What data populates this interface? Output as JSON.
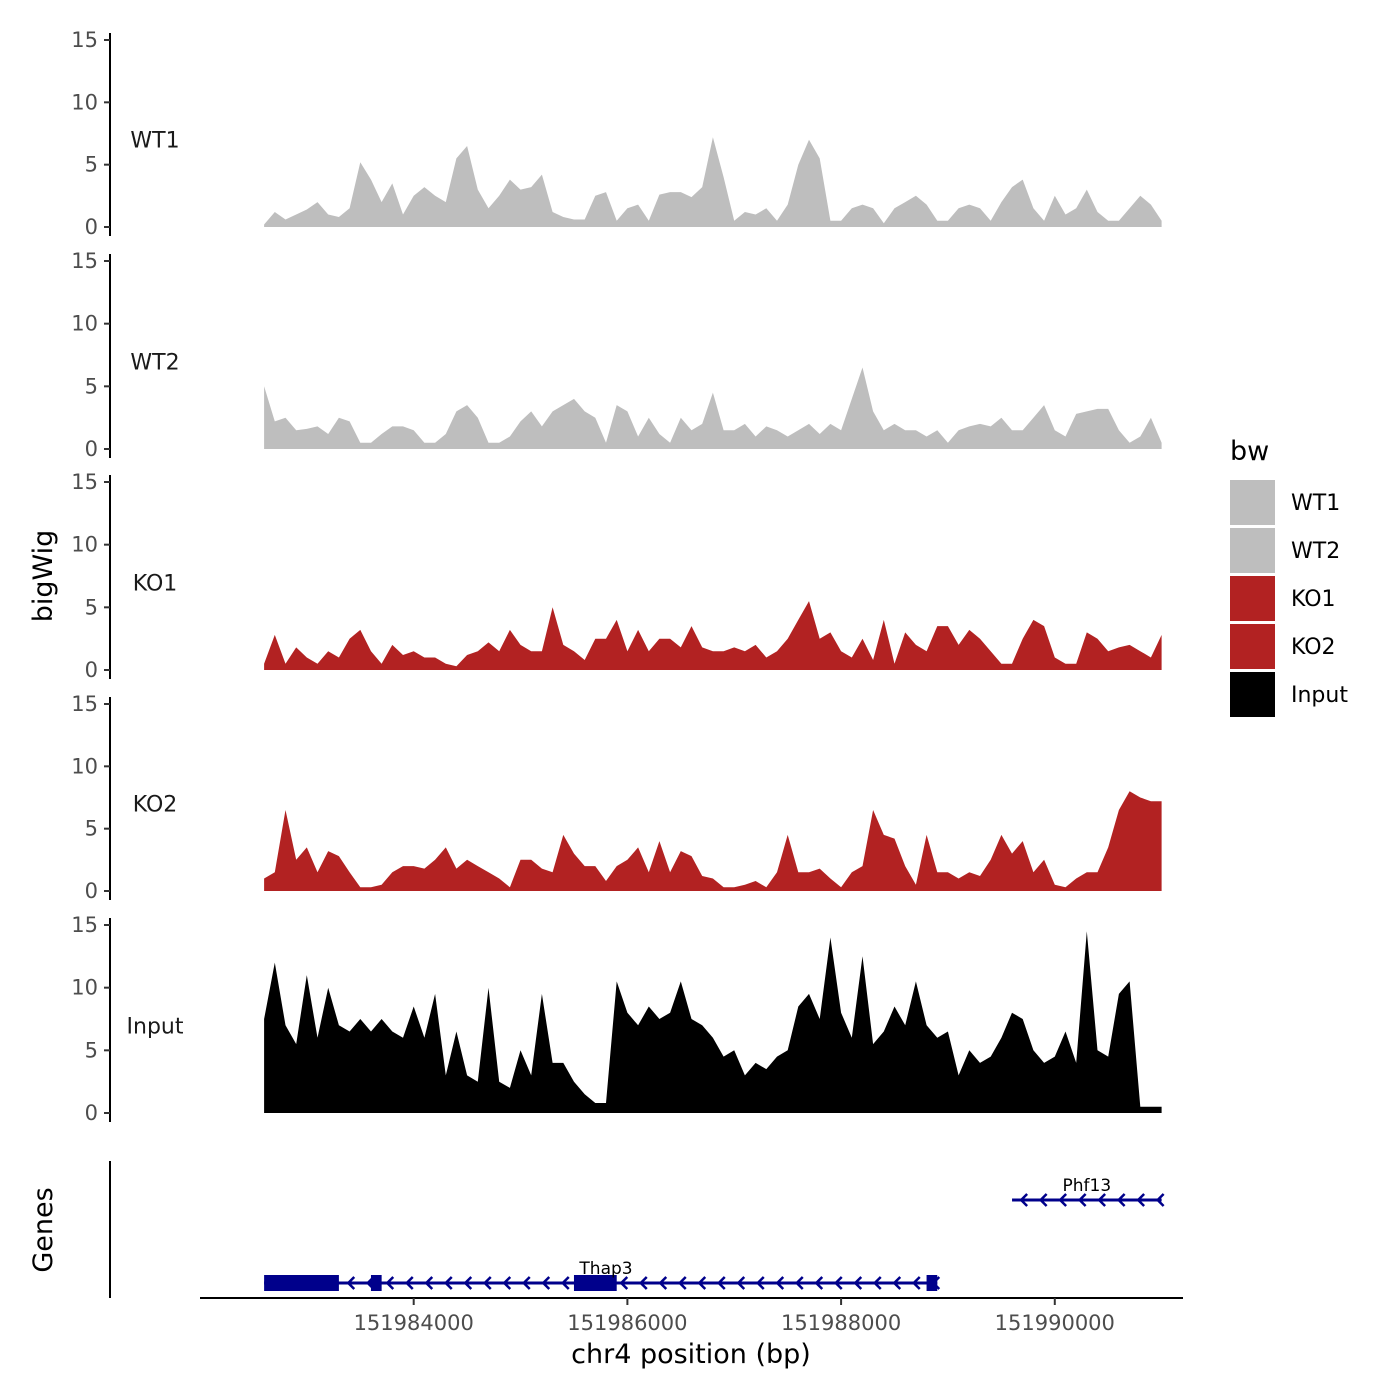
{
  "chart_data": {
    "type": "area",
    "title": "",
    "xlabel": "chr4 position (bp)",
    "ylabel": "bigWig",
    "genes_label": "Genes",
    "xlim": [
      151982000,
      151991200
    ],
    "x_ticks": [
      151984000,
      151986000,
      151988000,
      151990000
    ],
    "x_tick_labels": [
      "151984000",
      "151986000",
      "151988000",
      "151990000"
    ],
    "ylim": [
      0,
      15
    ],
    "y_ticks": [
      0,
      5,
      10,
      15
    ],
    "y_tick_labels": [
      "0",
      "5",
      "10",
      "15"
    ],
    "legend": {
      "title": "bw",
      "entries": [
        {
          "label": "WT1",
          "color": "#bebebe"
        },
        {
          "label": "WT2",
          "color": "#bebebe"
        },
        {
          "label": "KO1",
          "color": "#b22222"
        },
        {
          "label": "KO2",
          "color": "#b22222"
        },
        {
          "label": "Input",
          "color": "#000000"
        }
      ]
    },
    "series": [
      {
        "name": "WT1",
        "color": "#bebebe",
        "x": [
          151982600,
          151982700,
          151982800,
          151982900,
          151983000,
          151983100,
          151983200,
          151983300,
          151983400,
          151983500,
          151983600,
          151983700,
          151983800,
          151983900,
          151984000,
          151984100,
          151984200,
          151984300,
          151984400,
          151984500,
          151984600,
          151984700,
          151984800,
          151984900,
          151985000,
          151985100,
          151985200,
          151985300,
          151985400,
          151985500,
          151985600,
          151985700,
          151985800,
          151985900,
          151986000,
          151986100,
          151986200,
          151986300,
          151986400,
          151986500,
          151986600,
          151986700,
          151986800,
          151986900,
          151987000,
          151987100,
          151987200,
          151987300,
          151987400,
          151987500,
          151987600,
          151987700,
          151987800,
          151987900,
          151988000,
          151988100,
          151988200,
          151988300,
          151988400,
          151988500,
          151988600,
          151988700,
          151988800,
          151988900,
          151989000,
          151989100,
          151989200,
          151989300,
          151989400,
          151989500,
          151989600,
          151989700,
          151989800,
          151989900,
          151990000,
          151990100,
          151990200,
          151990300,
          151990400,
          151990500,
          151990600,
          151990700,
          151990800,
          151990900,
          151991000
        ],
        "values": [
          0.2,
          1.2,
          0.6,
          1.0,
          1.4,
          2.0,
          1.0,
          0.8,
          1.5,
          5.2,
          3.8,
          2.0,
          3.5,
          1.0,
          2.5,
          3.2,
          2.5,
          2.0,
          5.5,
          6.5,
          3.0,
          1.5,
          2.5,
          3.8,
          3.0,
          3.2,
          4.2,
          1.2,
          0.8,
          0.6,
          0.6,
          2.5,
          2.8,
          0.5,
          1.5,
          1.8,
          0.5,
          2.6,
          2.8,
          2.8,
          2.4,
          3.2,
          7.2,
          4.0,
          0.5,
          1.2,
          1.0,
          1.5,
          0.5,
          1.8,
          5.0,
          7.0,
          5.5,
          0.5,
          0.5,
          1.5,
          1.8,
          1.5,
          0.3,
          1.5,
          2.0,
          2.5,
          1.8,
          0.5,
          0.5,
          1.5,
          1.8,
          1.5,
          0.5,
          2.0,
          3.2,
          3.8,
          1.5,
          0.5,
          2.5,
          1.0,
          1.5,
          3.0,
          1.2,
          0.5,
          0.5,
          1.5,
          2.5,
          1.8,
          0.5
        ]
      },
      {
        "name": "WT2",
        "color": "#bebebe",
        "x": [
          151982600,
          151982700,
          151982800,
          151982900,
          151983000,
          151983100,
          151983200,
          151983300,
          151983400,
          151983500,
          151983600,
          151983700,
          151983800,
          151983900,
          151984000,
          151984100,
          151984200,
          151984300,
          151984400,
          151984500,
          151984600,
          151984700,
          151984800,
          151984900,
          151985000,
          151985100,
          151985200,
          151985300,
          151985400,
          151985500,
          151985600,
          151985700,
          151985800,
          151985900,
          151986000,
          151986100,
          151986200,
          151986300,
          151986400,
          151986500,
          151986600,
          151986700,
          151986800,
          151986900,
          151987000,
          151987100,
          151987200,
          151987300,
          151987400,
          151987500,
          151987600,
          151987700,
          151987800,
          151987900,
          151988000,
          151988100,
          151988200,
          151988300,
          151988400,
          151988500,
          151988600,
          151988700,
          151988800,
          151988900,
          151989000,
          151989100,
          151989200,
          151989300,
          151989400,
          151989500,
          151989600,
          151989700,
          151989800,
          151989900,
          151990000,
          151990100,
          151990200,
          151990300,
          151990400,
          151990500,
          151990600,
          151990700,
          151990800,
          151990900,
          151991000
        ],
        "values": [
          5.0,
          2.2,
          2.5,
          1.5,
          1.6,
          1.8,
          1.2,
          2.5,
          2.2,
          0.5,
          0.5,
          1.2,
          1.8,
          1.8,
          1.5,
          0.5,
          0.5,
          1.2,
          3.0,
          3.5,
          2.5,
          0.5,
          0.5,
          1.0,
          2.2,
          3.0,
          1.8,
          3.0,
          3.5,
          4.0,
          3.0,
          2.5,
          0.5,
          3.5,
          3.0,
          1.0,
          2.5,
          1.2,
          0.5,
          2.5,
          1.5,
          2.0,
          4.5,
          1.5,
          1.5,
          2.0,
          1.0,
          1.8,
          1.5,
          1.0,
          1.5,
          2.0,
          1.2,
          2.0,
          1.5,
          4.0,
          6.5,
          3.0,
          1.5,
          2.0,
          1.5,
          1.5,
          1.0,
          1.5,
          0.5,
          1.5,
          1.8,
          2.0,
          1.8,
          2.5,
          1.5,
          1.5,
          2.5,
          3.5,
          1.5,
          1.0,
          2.8,
          3.0,
          3.2,
          3.2,
          1.5,
          0.5,
          1.0,
          2.5,
          0.5
        ]
      },
      {
        "name": "KO1",
        "color": "#b22222",
        "x": [
          151982600,
          151982700,
          151982800,
          151982900,
          151983000,
          151983100,
          151983200,
          151983300,
          151983400,
          151983500,
          151983600,
          151983700,
          151983800,
          151983900,
          151984000,
          151984100,
          151984200,
          151984300,
          151984400,
          151984500,
          151984600,
          151984700,
          151984800,
          151984900,
          151985000,
          151985100,
          151985200,
          151985300,
          151985400,
          151985500,
          151985600,
          151985700,
          151985800,
          151985900,
          151986000,
          151986100,
          151986200,
          151986300,
          151986400,
          151986500,
          151986600,
          151986700,
          151986800,
          151986900,
          151987000,
          151987100,
          151987200,
          151987300,
          151987400,
          151987500,
          151987600,
          151987700,
          151987800,
          151987900,
          151988000,
          151988100,
          151988200,
          151988300,
          151988400,
          151988500,
          151988600,
          151988700,
          151988800,
          151988900,
          151989000,
          151989100,
          151989200,
          151989300,
          151989400,
          151989500,
          151989600,
          151989700,
          151989800,
          151989900,
          151990000,
          151990100,
          151990200,
          151990300,
          151990400,
          151990500,
          151990600,
          151990700,
          151990800,
          151990900,
          151991000
        ],
        "values": [
          0.5,
          2.8,
          0.5,
          1.8,
          1.0,
          0.5,
          1.5,
          1.0,
          2.5,
          3.2,
          1.5,
          0.5,
          2.0,
          1.2,
          1.5,
          1.0,
          1.0,
          0.5,
          0.3,
          1.2,
          1.5,
          2.2,
          1.5,
          3.2,
          2.0,
          1.5,
          1.5,
          5.0,
          2.0,
          1.5,
          0.8,
          2.5,
          2.5,
          4.0,
          1.5,
          3.2,
          1.5,
          2.5,
          2.5,
          1.8,
          3.5,
          1.8,
          1.5,
          1.5,
          1.8,
          1.5,
          2.0,
          1.0,
          1.5,
          2.5,
          4.0,
          5.5,
          2.5,
          3.0,
          1.5,
          1.0,
          2.5,
          0.8,
          4.0,
          0.5,
          3.0,
          2.0,
          1.5,
          3.5,
          3.5,
          2.0,
          3.2,
          2.5,
          1.5,
          0.5,
          0.5,
          2.5,
          4.0,
          3.5,
          1.0,
          0.5,
          0.5,
          3.0,
          2.5,
          1.5,
          1.8,
          2.0,
          1.5,
          1.0,
          2.8
        ]
      },
      {
        "name": "KO2",
        "color": "#b22222",
        "x": [
          151982600,
          151982700,
          151982800,
          151982900,
          151983000,
          151983100,
          151983200,
          151983300,
          151983400,
          151983500,
          151983600,
          151983700,
          151983800,
          151983900,
          151984000,
          151984100,
          151984200,
          151984300,
          151984400,
          151984500,
          151984600,
          151984700,
          151984800,
          151984900,
          151985000,
          151985100,
          151985200,
          151985300,
          151985400,
          151985500,
          151985600,
          151985700,
          151985800,
          151985900,
          151986000,
          151986100,
          151986200,
          151986300,
          151986400,
          151986500,
          151986600,
          151986700,
          151986800,
          151986900,
          151987000,
          151987100,
          151987200,
          151987300,
          151987400,
          151987500,
          151987600,
          151987700,
          151987800,
          151987900,
          151988000,
          151988100,
          151988200,
          151988300,
          151988400,
          151988500,
          151988600,
          151988700,
          151988800,
          151988900,
          151989000,
          151989100,
          151989200,
          151989300,
          151989400,
          151989500,
          151989600,
          151989700,
          151989800,
          151989900,
          151990000,
          151990100,
          151990200,
          151990300,
          151990400,
          151990500,
          151990600,
          151990700,
          151990800,
          151990900,
          151991000
        ],
        "values": [
          1.0,
          1.5,
          6.5,
          2.5,
          3.5,
          1.5,
          3.2,
          2.8,
          1.5,
          0.3,
          0.3,
          0.5,
          1.5,
          2.0,
          2.0,
          1.8,
          2.5,
          3.5,
          1.8,
          2.5,
          2.0,
          1.5,
          1.0,
          0.3,
          2.5,
          2.5,
          1.8,
          1.5,
          4.5,
          3.0,
          2.0,
          2.0,
          0.8,
          2.0,
          2.5,
          3.5,
          1.5,
          4.0,
          1.5,
          3.2,
          2.8,
          1.2,
          1.0,
          0.3,
          0.3,
          0.5,
          0.8,
          0.3,
          1.5,
          4.5,
          1.5,
          1.5,
          1.8,
          1.0,
          0.3,
          1.5,
          2.0,
          6.5,
          4.5,
          4.2,
          2.0,
          0.5,
          4.5,
          1.5,
          1.5,
          1.0,
          1.5,
          1.2,
          2.5,
          4.5,
          3.0,
          4.0,
          1.5,
          2.5,
          0.5,
          0.3,
          1.0,
          1.5,
          1.5,
          3.5,
          6.5,
          8.0,
          7.5,
          7.2,
          7.2
        ]
      },
      {
        "name": "Input",
        "color": "#000000",
        "x": [
          151982600,
          151982700,
          151982800,
          151982900,
          151983000,
          151983100,
          151983200,
          151983300,
          151983400,
          151983500,
          151983600,
          151983700,
          151983800,
          151983900,
          151984000,
          151984100,
          151984200,
          151984300,
          151984400,
          151984500,
          151984600,
          151984700,
          151984800,
          151984900,
          151985000,
          151985100,
          151985200,
          151985300,
          151985400,
          151985500,
          151985600,
          151985700,
          151985800,
          151985900,
          151986000,
          151986100,
          151986200,
          151986300,
          151986400,
          151986500,
          151986600,
          151986700,
          151986800,
          151986900,
          151987000,
          151987100,
          151987200,
          151987300,
          151987400,
          151987500,
          151987600,
          151987700,
          151987800,
          151987900,
          151988000,
          151988100,
          151988200,
          151988300,
          151988400,
          151988500,
          151988600,
          151988700,
          151988800,
          151988900,
          151989000,
          151989100,
          151989200,
          151989300,
          151989400,
          151989500,
          151989600,
          151989700,
          151989800,
          151989900,
          151990000,
          151990100,
          151990200,
          151990300,
          151990400,
          151990500,
          151990600,
          151990700,
          151990800,
          151990900,
          151991000
        ],
        "values": [
          7.5,
          12.0,
          7.0,
          5.5,
          11.0,
          6.0,
          10.0,
          7.0,
          6.5,
          7.5,
          6.5,
          7.5,
          6.5,
          6.0,
          8.5,
          6.0,
          9.5,
          3.0,
          6.5,
          3.0,
          2.5,
          10.0,
          2.5,
          2.0,
          5.0,
          3.0,
          9.5,
          4.0,
          4.0,
          2.5,
          1.5,
          0.8,
          0.8,
          10.5,
          8.0,
          7.0,
          8.5,
          7.5,
          8.0,
          10.5,
          7.5,
          7.0,
          6.0,
          4.5,
          5.0,
          3.0,
          4.0,
          3.5,
          4.5,
          5.0,
          8.5,
          9.5,
          7.5,
          14.0,
          8.0,
          6.0,
          12.5,
          5.5,
          6.5,
          8.5,
          7.0,
          10.5,
          7.0,
          6.0,
          6.5,
          3.0,
          5.0,
          4.0,
          4.5,
          6.0,
          8.0,
          7.5,
          5.0,
          4.0,
          4.5,
          6.5,
          4.0,
          14.5,
          5.0,
          4.5,
          9.5,
          10.5,
          0.5,
          0.5,
          0.5
        ]
      }
    ],
    "genes": [
      {
        "name": "Thap3",
        "strand": "-",
        "start": 151982600,
        "end": 151988900,
        "exons": [
          [
            151982600,
            151983300
          ],
          [
            151983600,
            151983700
          ],
          [
            151985500,
            151985900
          ],
          [
            151988800,
            151988900
          ]
        ]
      },
      {
        "name": "Phf13",
        "strand": "-",
        "start": 151989600,
        "end": 151991000,
        "exons": []
      }
    ],
    "gene_color": "#00008b"
  }
}
